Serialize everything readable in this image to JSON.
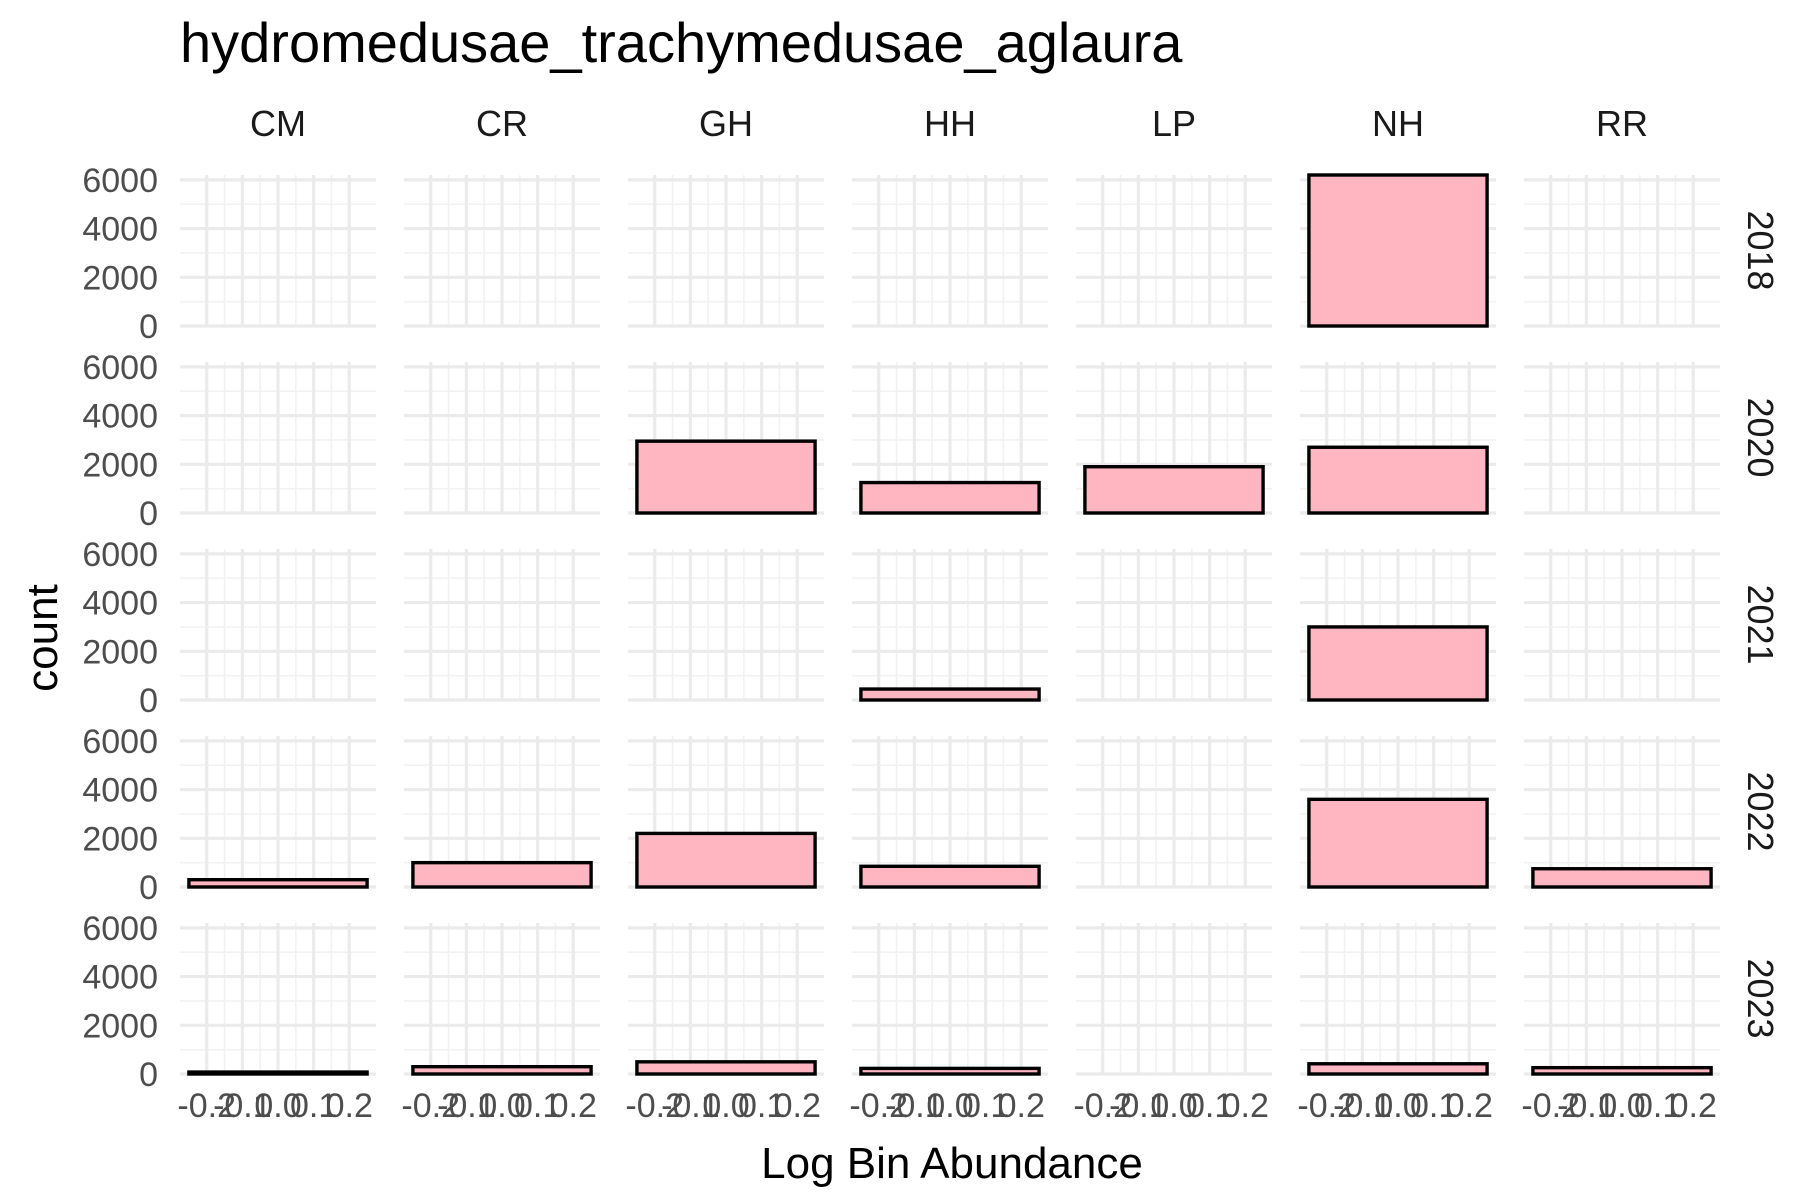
{
  "chart_data": {
    "type": "bar",
    "title": "hydromedusae_trachymedusae_aglaura",
    "xlabel": "Log Bin Abundance",
    "ylabel": "count",
    "facet_columns": [
      "CM",
      "CR",
      "GH",
      "HH",
      "LP",
      "NH",
      "RR"
    ],
    "facet_rows": [
      "2018",
      "2020",
      "2021",
      "2022",
      "2023"
    ],
    "x_ticks": [
      "-0.2",
      "-0.1",
      "0.0",
      "0.1",
      "0.2"
    ],
    "x_tick_values": [
      -0.2,
      -0.1,
      0.0,
      0.1,
      0.2
    ],
    "xlim": [
      -0.275,
      0.275
    ],
    "y_ticks": [
      "0",
      "2000",
      "4000",
      "6000"
    ],
    "y_tick_values": [
      0,
      2000,
      4000,
      6000
    ],
    "ylim": [
      0,
      6200
    ],
    "bar_x_range": [
      -0.25,
      0.25
    ],
    "grid": true,
    "bar_fill": "#ffb6c1",
    "bar_stroke": "#000000",
    "values": {
      "2018": {
        "CM": null,
        "CR": null,
        "GH": null,
        "HH": null,
        "LP": null,
        "NH": 6200,
        "RR": null
      },
      "2020": {
        "CM": null,
        "CR": null,
        "GH": 2950,
        "HH": 1250,
        "LP": 1900,
        "NH": 2700,
        "RR": null
      },
      "2021": {
        "CM": null,
        "CR": null,
        "GH": null,
        "HH": 450,
        "LP": null,
        "NH": 3000,
        "RR": null
      },
      "2022": {
        "CM": 300,
        "CR": 1000,
        "GH": 2200,
        "HH": 850,
        "LP": null,
        "NH": 3600,
        "RR": 750
      },
      "2023": {
        "CM": 80,
        "CR": 300,
        "GH": 500,
        "HH": 230,
        "LP": null,
        "NH": 420,
        "RR": 260
      }
    }
  }
}
